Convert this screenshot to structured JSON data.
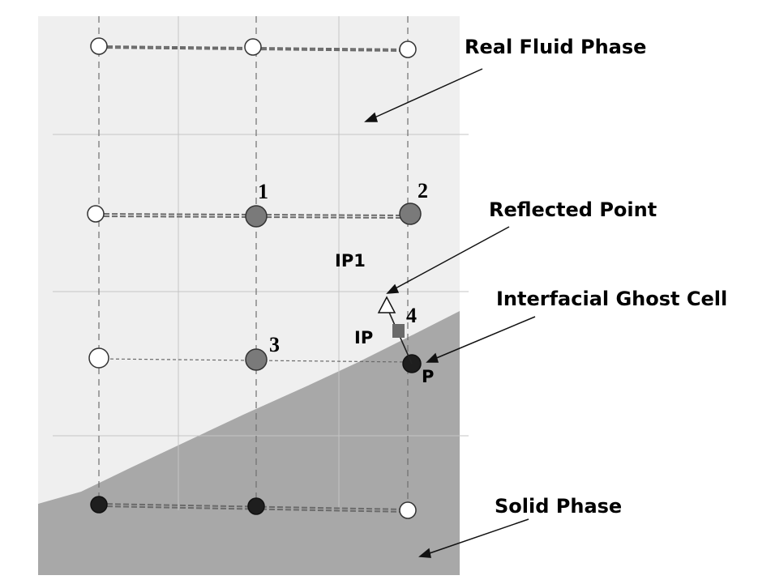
{
  "labels": {
    "real_fluid_phase": "Real Fluid Phase",
    "reflected_point": "Reflected Point",
    "interfacial_ghost_cell": "Interfacial Ghost Cell",
    "solid_phase": "Solid Phase",
    "ip1": "IP1",
    "ip": "IP",
    "p": "P",
    "n1": "1",
    "n2": "2",
    "n3": "3",
    "n4": "4"
  },
  "colors": {
    "fluid_region": "#efefef",
    "solid_region": "#a8a8a8",
    "fluid_node": "#ffffff",
    "interpolation_node": "#7a7a7a",
    "ghost_node": "#1e1e1e",
    "intercept_marker": "#6a6a6a"
  }
}
